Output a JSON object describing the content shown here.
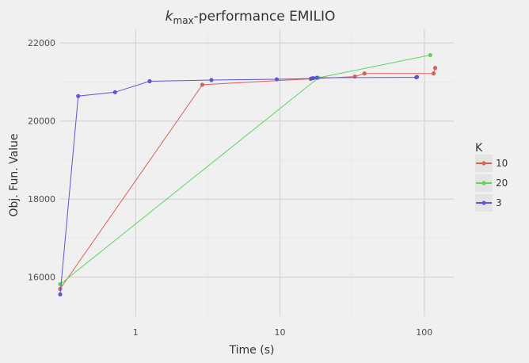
{
  "chart_data": {
    "type": "line",
    "title_main": "k",
    "title_sub": "max",
    "title_rest": "-performance EMILIO",
    "xlabel": "Time (s)",
    "ylabel": "Obj. Fun. Value",
    "xscale": "log10",
    "xlim": [
      0.3,
      160
    ],
    "ylim": [
      15000,
      22350
    ],
    "xticks": [
      1,
      10,
      100
    ],
    "xtick_labels": [
      "1",
      "10",
      "100"
    ],
    "yticks": [
      16000,
      18000,
      20000,
      22000
    ],
    "ytick_labels": [
      "16000",
      "18000",
      "20000",
      "22000"
    ],
    "grid": true,
    "legend_title": "K",
    "legend_position": "right",
    "series": [
      {
        "name": "10",
        "color": "#d9605a",
        "points": [
          [
            0.3,
            15700
          ],
          [
            2.9,
            20930
          ],
          [
            16.3,
            21080
          ],
          [
            33,
            21140
          ],
          [
            38.5,
            21220
          ],
          [
            116,
            21220
          ],
          [
            119,
            21360
          ]
        ]
      },
      {
        "name": "20",
        "color": "#5cd65c",
        "points": [
          [
            0.3,
            15820
          ],
          [
            18.5,
            21110
          ],
          [
            110,
            21690
          ]
        ]
      },
      {
        "name": "3",
        "color": "#5e55d6",
        "points": [
          [
            0.3,
            15560
          ],
          [
            0.4,
            20640
          ],
          [
            0.72,
            20740
          ],
          [
            1.25,
            21020
          ],
          [
            3.35,
            21050
          ],
          [
            9.5,
            21070
          ],
          [
            16.5,
            21090
          ],
          [
            17,
            21100
          ],
          [
            18,
            21110
          ],
          [
            88,
            21120
          ],
          [
            89,
            21130
          ]
        ]
      }
    ]
  }
}
